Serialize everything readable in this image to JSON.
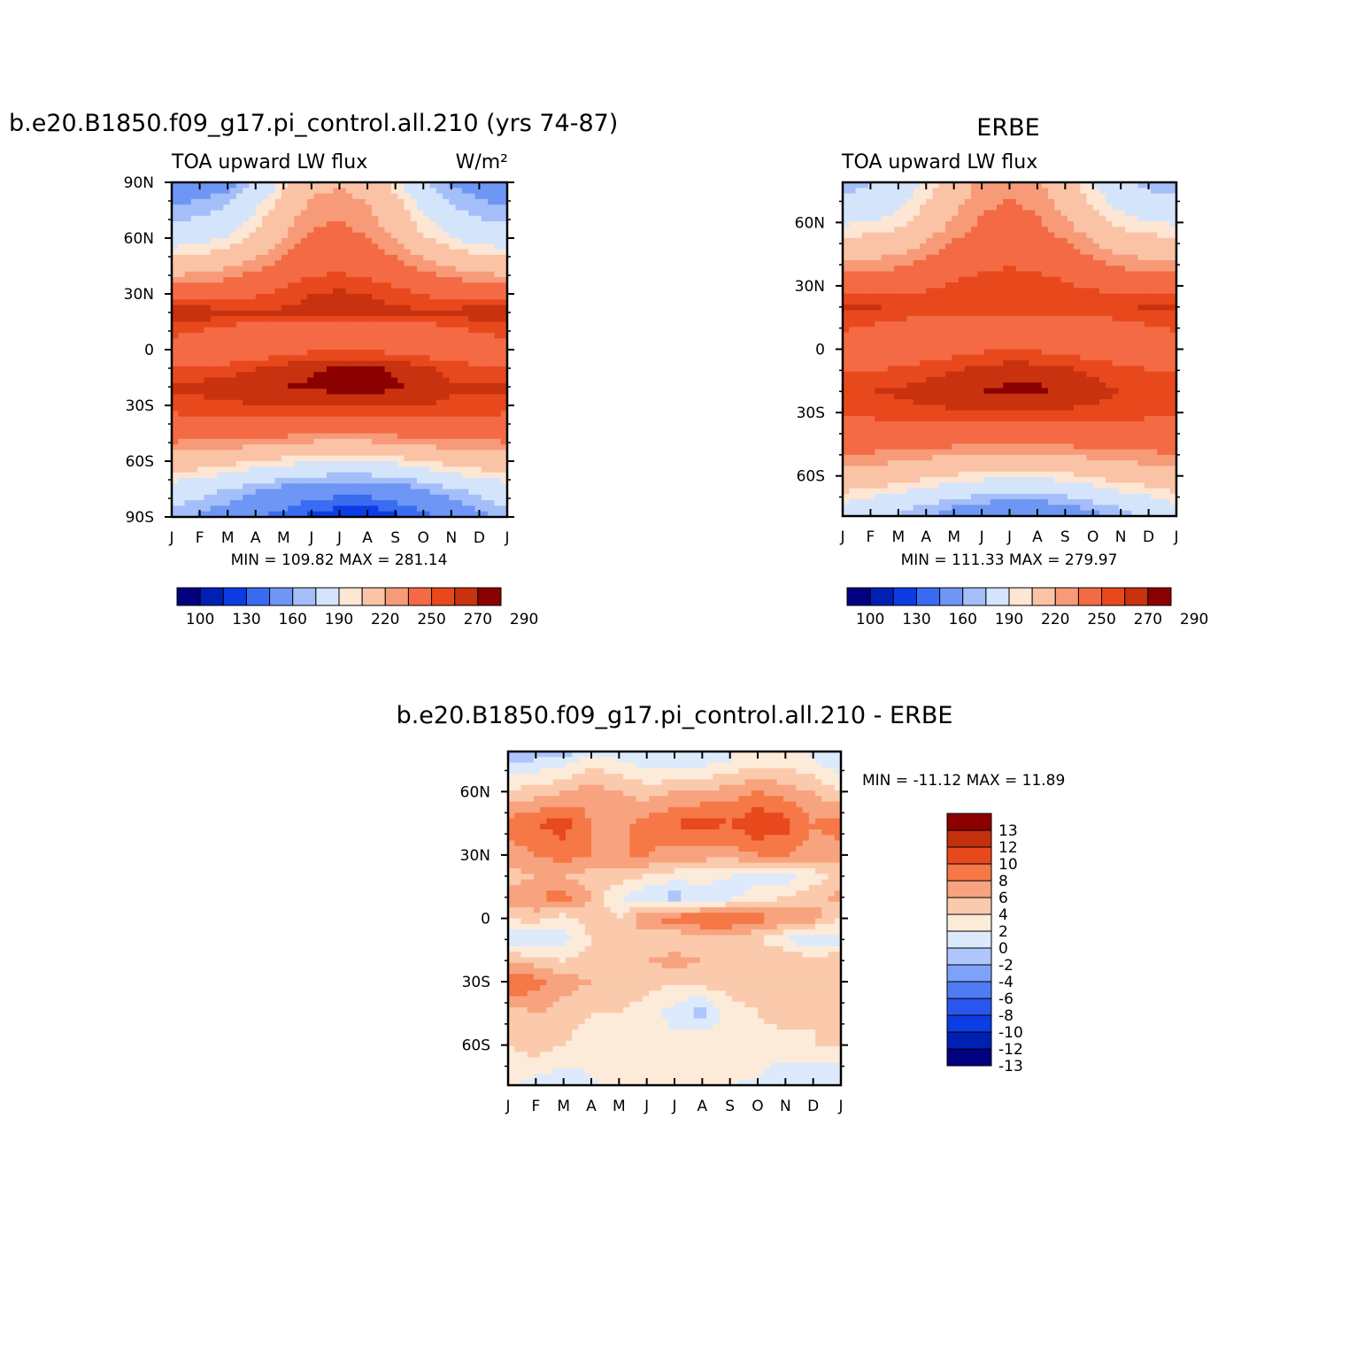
{
  "panels": [
    {
      "title": "b.e20.B1850.f09_g17.pi_control.all.210 (yrs 74-87)",
      "subtitle_left": "TOA upward LW flux",
      "units": "W/m²",
      "stats": "MIN = 109.82 MAX = 281.14",
      "y_ticks": [
        "90N",
        "60N",
        "30N",
        "0",
        "30S",
        "60S",
        "90S"
      ],
      "x_ticks": [
        "J",
        "F",
        "M",
        "A",
        "M",
        "J",
        "J",
        "A",
        "S",
        "O",
        "N",
        "D",
        "J"
      ],
      "colorbar_labels": [
        "100",
        "130",
        "160",
        "190",
        "220",
        "250",
        "270",
        "290"
      ]
    },
    {
      "title": "ERBE",
      "subtitle_left": "TOA upward LW flux",
      "units": "",
      "stats": "MIN = 111.33 MAX = 279.97",
      "y_ticks": [
        "60N",
        "30N",
        "0",
        "30S",
        "60S"
      ],
      "x_ticks": [
        "J",
        "F",
        "M",
        "A",
        "M",
        "J",
        "J",
        "A",
        "S",
        "O",
        "N",
        "D",
        "J"
      ],
      "colorbar_labels": [
        "100",
        "130",
        "160",
        "190",
        "220",
        "250",
        "270",
        "290"
      ]
    },
    {
      "title": "b.e20.B1850.f09_g17.pi_control.all.210 - ERBE",
      "stats": "MIN = -11.12 MAX = 11.89",
      "y_ticks": [
        "60N",
        "30N",
        "0",
        "30S",
        "60S"
      ],
      "x_ticks": [
        "J",
        "F",
        "M",
        "A",
        "M",
        "J",
        "J",
        "A",
        "S",
        "O",
        "N",
        "D",
        "J"
      ],
      "colorbar_labels": [
        "13",
        "12",
        "10",
        "8",
        "6",
        "4",
        "2",
        "0",
        "-2",
        "-4",
        "-6",
        "-8",
        "-10",
        "-12",
        "-13"
      ]
    }
  ],
  "colors": {
    "flux_scale": [
      "#000080",
      "#0020b4",
      "#0c3ce4",
      "#3a6cf2",
      "#6e96f5",
      "#a4bef9",
      "#d4e4fb",
      "#fde6d4",
      "#fbc3a6",
      "#f79a78",
      "#f46a45",
      "#e8491c",
      "#c8320e",
      "#8b0000"
    ],
    "diff_scale": [
      "#000080",
      "#0020b4",
      "#0c3ce4",
      "#2a56f0",
      "#4f7cf3",
      "#7da2f7",
      "#aec6fb",
      "#dceafc",
      "#fdebd9",
      "#fbcaad",
      "#f8a37f",
      "#f57846",
      "#e8491c",
      "#c3300c",
      "#8b0000"
    ]
  },
  "chart_data": [
    {
      "type": "heatmap",
      "title": "b.e20.B1850.f09_g17.pi_control.all.210 (yrs 74-87)",
      "variable": "TOA upward LW flux",
      "units": "W/m2",
      "x": [
        "J",
        "F",
        "M",
        "A",
        "M",
        "J",
        "J",
        "A",
        "S",
        "O",
        "N",
        "D",
        "J"
      ],
      "y": [
        90,
        75,
        60,
        45,
        30,
        20,
        10,
        0,
        -10,
        -20,
        -30,
        -45,
        -60,
        -75,
        -90
      ],
      "z": [
        [
          150,
          150,
          155,
          170,
          195,
          215,
          218,
          212,
          195,
          172,
          158,
          152,
          150
        ],
        [
          162,
          165,
          172,
          190,
          210,
          225,
          228,
          222,
          208,
          188,
          172,
          165,
          162
        ],
        [
          180,
          184,
          192,
          205,
          220,
          232,
          235,
          230,
          218,
          202,
          190,
          183,
          180
        ],
        [
          210,
          212,
          218,
          226,
          236,
          244,
          246,
          243,
          236,
          226,
          218,
          212,
          210
        ],
        [
          240,
          242,
          244,
          248,
          254,
          260,
          262,
          260,
          255,
          249,
          245,
          242,
          240
        ],
        [
          268,
          267,
          264,
          262,
          262,
          263,
          264,
          264,
          263,
          262,
          264,
          267,
          268
        ],
        [
          255,
          250,
          245,
          240,
          236,
          232,
          228,
          230,
          234,
          240,
          246,
          252,
          255
        ],
        [
          240,
          228,
          232,
          238,
          244,
          248,
          250,
          248,
          246,
          242,
          240,
          238,
          240
        ],
        [
          250,
          252,
          255,
          260,
          264,
          268,
          272,
          272,
          268,
          262,
          256,
          252,
          250
        ],
        [
          262,
          264,
          265,
          268,
          270,
          272,
          275,
          276,
          272,
          266,
          262,
          262,
          262
        ],
        [
          255,
          256,
          258,
          260,
          260,
          260,
          260,
          260,
          260,
          260,
          258,
          256,
          255
        ],
        [
          238,
          238,
          238,
          236,
          234,
          232,
          231,
          232,
          234,
          236,
          238,
          238,
          238
        ],
        [
          212,
          210,
          205,
          200,
          196,
          192,
          190,
          190,
          194,
          200,
          206,
          210,
          212
        ],
        [
          182,
          176,
          170,
          162,
          156,
          150,
          148,
          148,
          152,
          160,
          168,
          176,
          182
        ],
        [
          165,
          158,
          150,
          142,
          134,
          126,
          120,
          120,
          126,
          134,
          145,
          156,
          165
        ]
      ],
      "contour_levels": [
        100,
        110,
        130,
        140,
        160,
        170,
        190,
        200,
        220,
        230,
        250,
        260,
        270,
        280,
        290
      ]
    },
    {
      "type": "heatmap",
      "title": "ERBE",
      "variable": "TOA upward LW flux",
      "units": "W/m2",
      "x": [
        "J",
        "F",
        "M",
        "A",
        "M",
        "J",
        "J",
        "A",
        "S",
        "O",
        "N",
        "D",
        "J"
      ],
      "y": [
        90,
        75,
        60,
        45,
        30,
        20,
        10,
        0,
        -10,
        -20,
        -30,
        -45,
        -60,
        -75,
        -90
      ],
      "z": [
        [
          155,
          160,
          168,
          185,
          205,
          218,
          220,
          215,
          200,
          180,
          165,
          158,
          155
        ],
        [
          168,
          172,
          180,
          196,
          212,
          225,
          228,
          224,
          210,
          192,
          178,
          170,
          168
        ],
        [
          188,
          190,
          196,
          208,
          222,
          232,
          235,
          232,
          222,
          208,
          196,
          190,
          188
        ],
        [
          215,
          216,
          220,
          228,
          236,
          242,
          244,
          242,
          236,
          228,
          220,
          216,
          215
        ],
        [
          240,
          241,
          243,
          247,
          252,
          256,
          258,
          256,
          252,
          248,
          244,
          241,
          240
        ],
        [
          262,
          261,
          259,
          258,
          258,
          259,
          260,
          260,
          259,
          258,
          259,
          261,
          262
        ],
        [
          252,
          248,
          244,
          240,
          237,
          234,
          232,
          233,
          236,
          240,
          244,
          248,
          252
        ],
        [
          240,
          234,
          236,
          240,
          244,
          248,
          250,
          248,
          246,
          242,
          240,
          238,
          240
        ],
        [
          248,
          250,
          252,
          256,
          260,
          263,
          266,
          266,
          263,
          258,
          254,
          250,
          248
        ],
        [
          258,
          260,
          262,
          265,
          268,
          270,
          272,
          272,
          268,
          264,
          260,
          258,
          258
        ],
        [
          252,
          253,
          255,
          257,
          258,
          258,
          258,
          258,
          258,
          257,
          255,
          253,
          252
        ],
        [
          236,
          236,
          236,
          234,
          232,
          230,
          229,
          230,
          232,
          234,
          236,
          236,
          236
        ],
        [
          214,
          212,
          208,
          203,
          199,
          195,
          193,
          193,
          197,
          202,
          207,
          211,
          214
        ],
        [
          186,
          180,
          174,
          166,
          160,
          154,
          151,
          151,
          155,
          163,
          171,
          179,
          186
        ],
        [
          170,
          162,
          155,
          146,
          138,
          130,
          125,
          125,
          130,
          138,
          148,
          160,
          170
        ]
      ],
      "contour_levels": [
        100,
        110,
        130,
        140,
        160,
        170,
        190,
        200,
        220,
        230,
        250,
        260,
        270,
        280,
        290
      ]
    },
    {
      "type": "heatmap",
      "title": "b.e20.B1850.f09_g17.pi_control.all.210 - ERBE",
      "units": "W/m2",
      "x": [
        "J",
        "F",
        "M",
        "A",
        "M",
        "J",
        "J",
        "A",
        "S",
        "O",
        "N",
        "D",
        "J"
      ],
      "y": [
        90,
        75,
        60,
        45,
        30,
        20,
        10,
        0,
        -10,
        -20,
        -30,
        -45,
        -60,
        -75,
        -90
      ],
      "z": [
        [
          -6,
          -9,
          -11,
          -6,
          -1,
          0,
          1,
          0,
          0,
          1,
          1,
          -1,
          -3
        ],
        [
          -2,
          -2,
          -1,
          1,
          0,
          -1,
          -2,
          -1,
          0,
          1,
          1,
          0,
          -2
        ],
        [
          2,
          3,
          4,
          5,
          4,
          3,
          4,
          4,
          5,
          6,
          5,
          4,
          2
        ],
        [
          7,
          8,
          9,
          6,
          5,
          7,
          8,
          9,
          8,
          10,
          9,
          6,
          7
        ],
        [
          5,
          6,
          7,
          6,
          6,
          6,
          5,
          5,
          5,
          6,
          6,
          5,
          5
        ],
        [
          3,
          4,
          4,
          3,
          3,
          2,
          1,
          1,
          0,
          -1,
          -1,
          1,
          3
        ],
        [
          5,
          6,
          7,
          4,
          0,
          -2,
          -3,
          -2,
          -1,
          1,
          2,
          3,
          5
        ],
        [
          2,
          3,
          1,
          3,
          2,
          6,
          7,
          8,
          8,
          7,
          6,
          5,
          2
        ],
        [
          -1,
          -2,
          -1,
          2,
          3,
          3,
          2,
          3,
          3,
          2,
          0,
          -2,
          -1
        ],
        [
          4,
          3,
          2,
          3,
          4,
          4,
          5,
          4,
          3,
          4,
          4,
          3,
          4
        ],
        [
          8,
          7,
          5,
          4,
          3,
          3,
          2,
          3,
          3,
          3,
          4,
          4,
          4
        ],
        [
          3,
          4,
          3,
          2,
          2,
          1,
          -1,
          -3,
          1,
          2,
          3,
          2,
          3
        ],
        [
          2,
          3,
          2,
          1,
          0,
          1,
          1,
          2,
          2,
          1,
          1,
          2,
          2
        ],
        [
          1,
          0,
          -1,
          0,
          1,
          2,
          2,
          1,
          1,
          0,
          -1,
          -2,
          -1
        ],
        [
          -2,
          -3,
          -2,
          -1,
          -1,
          -2,
          -2,
          -2,
          -3,
          -4,
          -3,
          -2,
          -2
        ]
      ],
      "contour_levels": [
        -13,
        -12,
        -10,
        -8,
        -6,
        -4,
        -2,
        0,
        2,
        4,
        6,
        8,
        10,
        12,
        13
      ]
    }
  ]
}
